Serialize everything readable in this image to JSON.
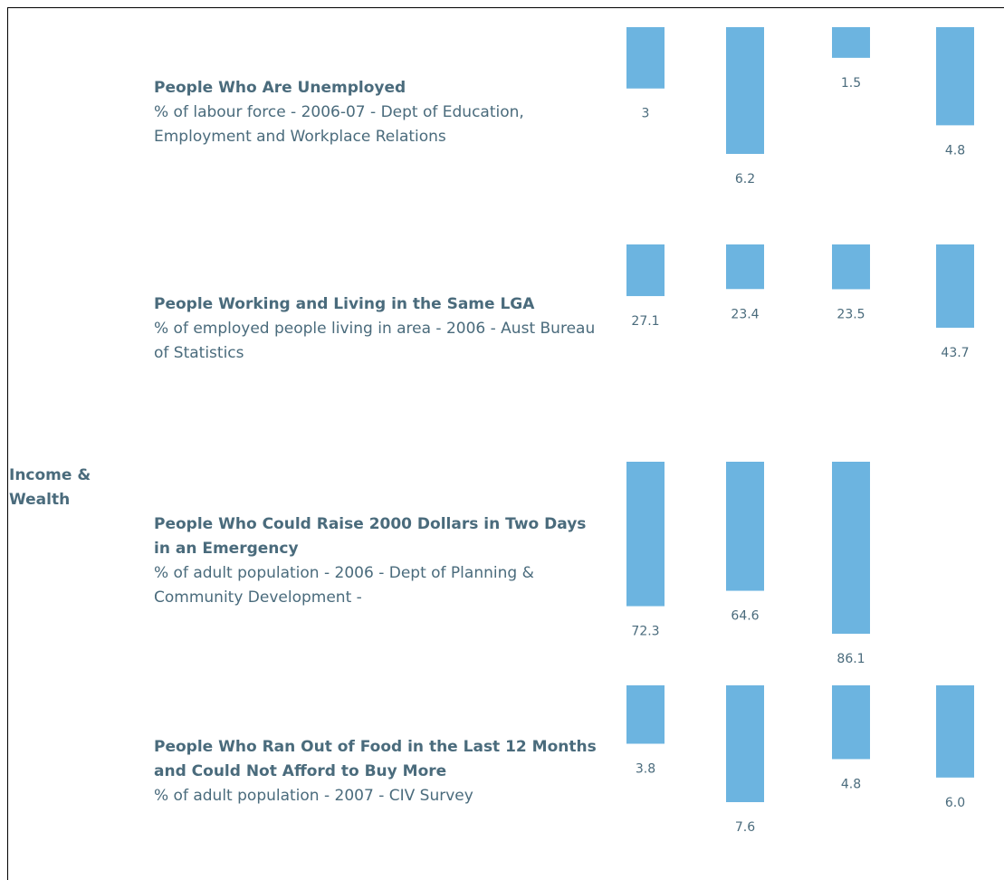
{
  "section": "Income & Wealth",
  "indicators": [
    {
      "title": "People Who Are Unemployed",
      "subtitle": "% of labour force - 2006-07 - Dept of Education, Employment and Workplace Relations",
      "values": [
        3,
        6.2,
        1.5,
        4.8
      ],
      "color": "#6cb4e0"
    },
    {
      "title": "People Working and Living in the Same LGA",
      "subtitle": "% of employed people living in area - 2006 - Aust Bureau of Statistics",
      "values": [
        27.1,
        23.4,
        23.5,
        43.7
      ],
      "color": "#6cb4e0"
    },
    {
      "title": "People Who Could Raise 2000 Dollars in Two Days in an Emergency",
      "subtitle": "% of adult population - 2006 - Dept of Planning & Community Development -",
      "values": [
        72.3,
        64.6,
        86.1
      ],
      "color": "#6cb4e0"
    },
    {
      "title": "People Who Ran Out of Food in the Last 12 Months and Could Not Afford to Buy More",
      "subtitle": "% of adult population - 2007 - CIV Survey",
      "values": [
        3.8,
        7.6,
        4.8,
        6
      ],
      "value_labels": [
        "3.8",
        "7.6",
        "4.8",
        "6.0"
      ],
      "color": "#6cb4e0"
    }
  ]
}
